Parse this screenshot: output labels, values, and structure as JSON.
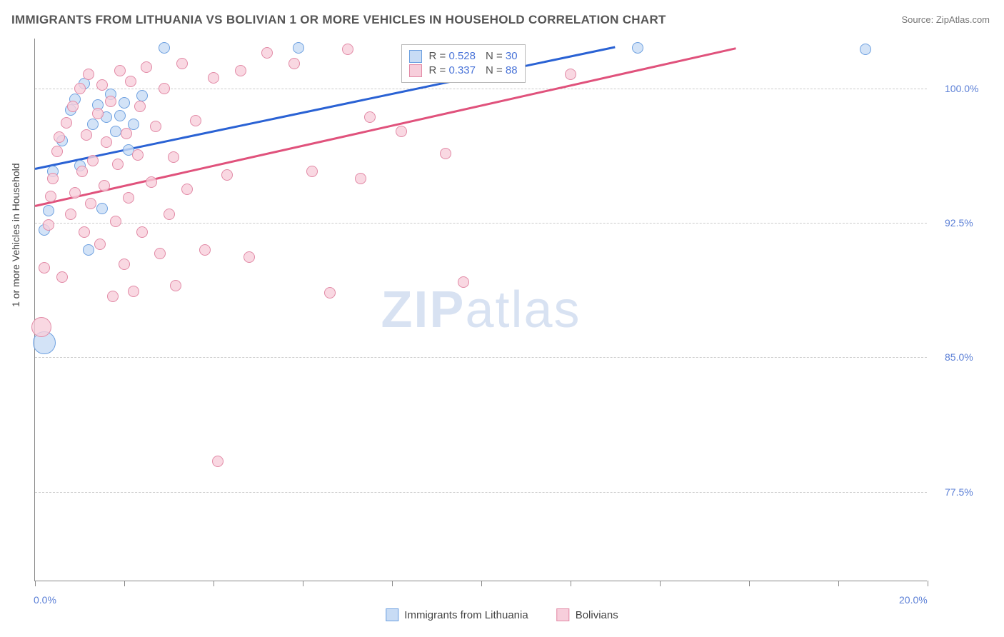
{
  "title": "IMMIGRANTS FROM LITHUANIA VS BOLIVIAN 1 OR MORE VEHICLES IN HOUSEHOLD CORRELATION CHART",
  "source": "Source: ZipAtlas.com",
  "watermark_a": "ZIP",
  "watermark_b": "atlas",
  "y_axis_title": "1 or more Vehicles in Household",
  "chart": {
    "type": "scatter",
    "xlim": [
      0,
      20
    ],
    "ylim": [
      72.5,
      102.8
    ],
    "x_ticks": [
      0,
      2,
      4,
      6,
      8,
      10,
      12,
      14,
      16,
      18,
      20
    ],
    "x_tick_labels": {
      "0": "0.0%",
      "20": "20.0%"
    },
    "y_ticks": [
      77.5,
      85.0,
      92.5,
      100.0
    ],
    "y_tick_labels": [
      "77.5%",
      "85.0%",
      "92.5%",
      "100.0%"
    ],
    "grid_color": "#cccccc",
    "background": "#ffffff",
    "series": [
      {
        "name": "Immigrants from Lithuania",
        "color_fill": "#c8dcf5cc",
        "color_stroke": "#6da0e0",
        "line_color": "#2a62d4",
        "r_value": "0.528",
        "n_value": "30",
        "trend": {
          "x1": 0,
          "y1": 95.6,
          "x2": 13.0,
          "y2": 102.4
        },
        "points": [
          {
            "x": 0.2,
            "y": 85.8,
            "r": 16
          },
          {
            "x": 0.2,
            "y": 92.1,
            "r": 8
          },
          {
            "x": 0.3,
            "y": 93.2,
            "r": 8
          },
          {
            "x": 0.4,
            "y": 95.4,
            "r": 8
          },
          {
            "x": 0.6,
            "y": 97.1,
            "r": 8
          },
          {
            "x": 0.8,
            "y": 98.8,
            "r": 8
          },
          {
            "x": 0.9,
            "y": 99.4,
            "r": 8
          },
          {
            "x": 1.0,
            "y": 95.7,
            "r": 8
          },
          {
            "x": 1.1,
            "y": 100.3,
            "r": 8
          },
          {
            "x": 1.2,
            "y": 91.0,
            "r": 8
          },
          {
            "x": 1.3,
            "y": 98.0,
            "r": 8
          },
          {
            "x": 1.4,
            "y": 99.1,
            "r": 8
          },
          {
            "x": 1.5,
            "y": 93.3,
            "r": 8
          },
          {
            "x": 1.6,
            "y": 98.4,
            "r": 8
          },
          {
            "x": 1.7,
            "y": 99.7,
            "r": 8
          },
          {
            "x": 1.8,
            "y": 97.6,
            "r": 8
          },
          {
            "x": 1.9,
            "y": 98.5,
            "r": 8
          },
          {
            "x": 2.0,
            "y": 99.2,
            "r": 8
          },
          {
            "x": 2.1,
            "y": 96.6,
            "r": 8
          },
          {
            "x": 2.2,
            "y": 98.0,
            "r": 8
          },
          {
            "x": 2.4,
            "y": 99.6,
            "r": 8
          },
          {
            "x": 2.9,
            "y": 102.3,
            "r": 8
          },
          {
            "x": 5.9,
            "y": 102.3,
            "r": 8
          },
          {
            "x": 13.5,
            "y": 102.3,
            "r": 8
          },
          {
            "x": 18.6,
            "y": 102.2,
            "r": 8
          }
        ]
      },
      {
        "name": "Bolivians",
        "color_fill": "#f7cedbcc",
        "color_stroke": "#e28aa6",
        "line_color": "#e0527c",
        "r_value": "0.337",
        "n_value": "88",
        "trend": {
          "x1": 0,
          "y1": 93.5,
          "x2": 15.7,
          "y2": 102.3
        },
        "points": [
          {
            "x": 0.15,
            "y": 86.7,
            "r": 14
          },
          {
            "x": 0.2,
            "y": 90.0,
            "r": 8
          },
          {
            "x": 0.3,
            "y": 92.4,
            "r": 8
          },
          {
            "x": 0.35,
            "y": 94.0,
            "r": 8
          },
          {
            "x": 0.4,
            "y": 95.0,
            "r": 8
          },
          {
            "x": 0.5,
            "y": 96.5,
            "r": 8
          },
          {
            "x": 0.55,
            "y": 97.3,
            "r": 8
          },
          {
            "x": 0.6,
            "y": 89.5,
            "r": 8
          },
          {
            "x": 0.7,
            "y": 98.1,
            "r": 8
          },
          {
            "x": 0.8,
            "y": 93.0,
            "r": 8
          },
          {
            "x": 0.85,
            "y": 99.0,
            "r": 8
          },
          {
            "x": 0.9,
            "y": 94.2,
            "r": 8
          },
          {
            "x": 1.0,
            "y": 100.0,
            "r": 8
          },
          {
            "x": 1.05,
            "y": 95.4,
            "r": 8
          },
          {
            "x": 1.1,
            "y": 92.0,
            "r": 8
          },
          {
            "x": 1.15,
            "y": 97.4,
            "r": 8
          },
          {
            "x": 1.2,
            "y": 100.8,
            "r": 8
          },
          {
            "x": 1.25,
            "y": 93.6,
            "r": 8
          },
          {
            "x": 1.3,
            "y": 96.0,
            "r": 8
          },
          {
            "x": 1.4,
            "y": 98.6,
            "r": 8
          },
          {
            "x": 1.45,
            "y": 91.3,
            "r": 8
          },
          {
            "x": 1.5,
            "y": 100.2,
            "r": 8
          },
          {
            "x": 1.55,
            "y": 94.6,
            "r": 8
          },
          {
            "x": 1.6,
            "y": 97.0,
            "r": 8
          },
          {
            "x": 1.7,
            "y": 99.3,
            "r": 8
          },
          {
            "x": 1.75,
            "y": 88.4,
            "r": 8
          },
          {
            "x": 1.8,
            "y": 92.6,
            "r": 8
          },
          {
            "x": 1.85,
            "y": 95.8,
            "r": 8
          },
          {
            "x": 1.9,
            "y": 101.0,
            "r": 8
          },
          {
            "x": 2.0,
            "y": 90.2,
            "r": 8
          },
          {
            "x": 2.05,
            "y": 97.5,
            "r": 8
          },
          {
            "x": 2.1,
            "y": 93.9,
            "r": 8
          },
          {
            "x": 2.15,
            "y": 100.4,
            "r": 8
          },
          {
            "x": 2.2,
            "y": 88.7,
            "r": 8
          },
          {
            "x": 2.3,
            "y": 96.3,
            "r": 8
          },
          {
            "x": 2.35,
            "y": 99.0,
            "r": 8
          },
          {
            "x": 2.4,
            "y": 92.0,
            "r": 8
          },
          {
            "x": 2.5,
            "y": 101.2,
            "r": 8
          },
          {
            "x": 2.6,
            "y": 94.8,
            "r": 8
          },
          {
            "x": 2.7,
            "y": 97.9,
            "r": 8
          },
          {
            "x": 2.8,
            "y": 90.8,
            "r": 8
          },
          {
            "x": 2.9,
            "y": 100.0,
            "r": 8
          },
          {
            "x": 3.0,
            "y": 93.0,
            "r": 8
          },
          {
            "x": 3.1,
            "y": 96.2,
            "r": 8
          },
          {
            "x": 3.15,
            "y": 89.0,
            "r": 8
          },
          {
            "x": 3.3,
            "y": 101.4,
            "r": 8
          },
          {
            "x": 3.4,
            "y": 94.4,
            "r": 8
          },
          {
            "x": 3.6,
            "y": 98.2,
            "r": 8
          },
          {
            "x": 3.8,
            "y": 91.0,
            "r": 8
          },
          {
            "x": 4.0,
            "y": 100.6,
            "r": 8
          },
          {
            "x": 4.1,
            "y": 79.2,
            "r": 8
          },
          {
            "x": 4.3,
            "y": 95.2,
            "r": 8
          },
          {
            "x": 4.6,
            "y": 101.0,
            "r": 8
          },
          {
            "x": 4.8,
            "y": 90.6,
            "r": 8
          },
          {
            "x": 5.2,
            "y": 102.0,
            "r": 8
          },
          {
            "x": 5.8,
            "y": 101.4,
            "r": 8
          },
          {
            "x": 6.2,
            "y": 95.4,
            "r": 8
          },
          {
            "x": 6.6,
            "y": 88.6,
            "r": 8
          },
          {
            "x": 7.0,
            "y": 102.2,
            "r": 8
          },
          {
            "x": 7.3,
            "y": 95.0,
            "r": 8
          },
          {
            "x": 7.5,
            "y": 98.4,
            "r": 8
          },
          {
            "x": 8.2,
            "y": 97.6,
            "r": 8
          },
          {
            "x": 9.2,
            "y": 96.4,
            "r": 8
          },
          {
            "x": 9.6,
            "y": 89.2,
            "r": 8
          },
          {
            "x": 12.0,
            "y": 100.8,
            "r": 8
          }
        ]
      }
    ]
  },
  "legend_bottom": [
    {
      "label": "Immigrants from Lithuania",
      "fill": "#c8dcf5",
      "stroke": "#6da0e0"
    },
    {
      "label": "Bolivians",
      "fill": "#f7cedb",
      "stroke": "#e28aa6"
    }
  ]
}
